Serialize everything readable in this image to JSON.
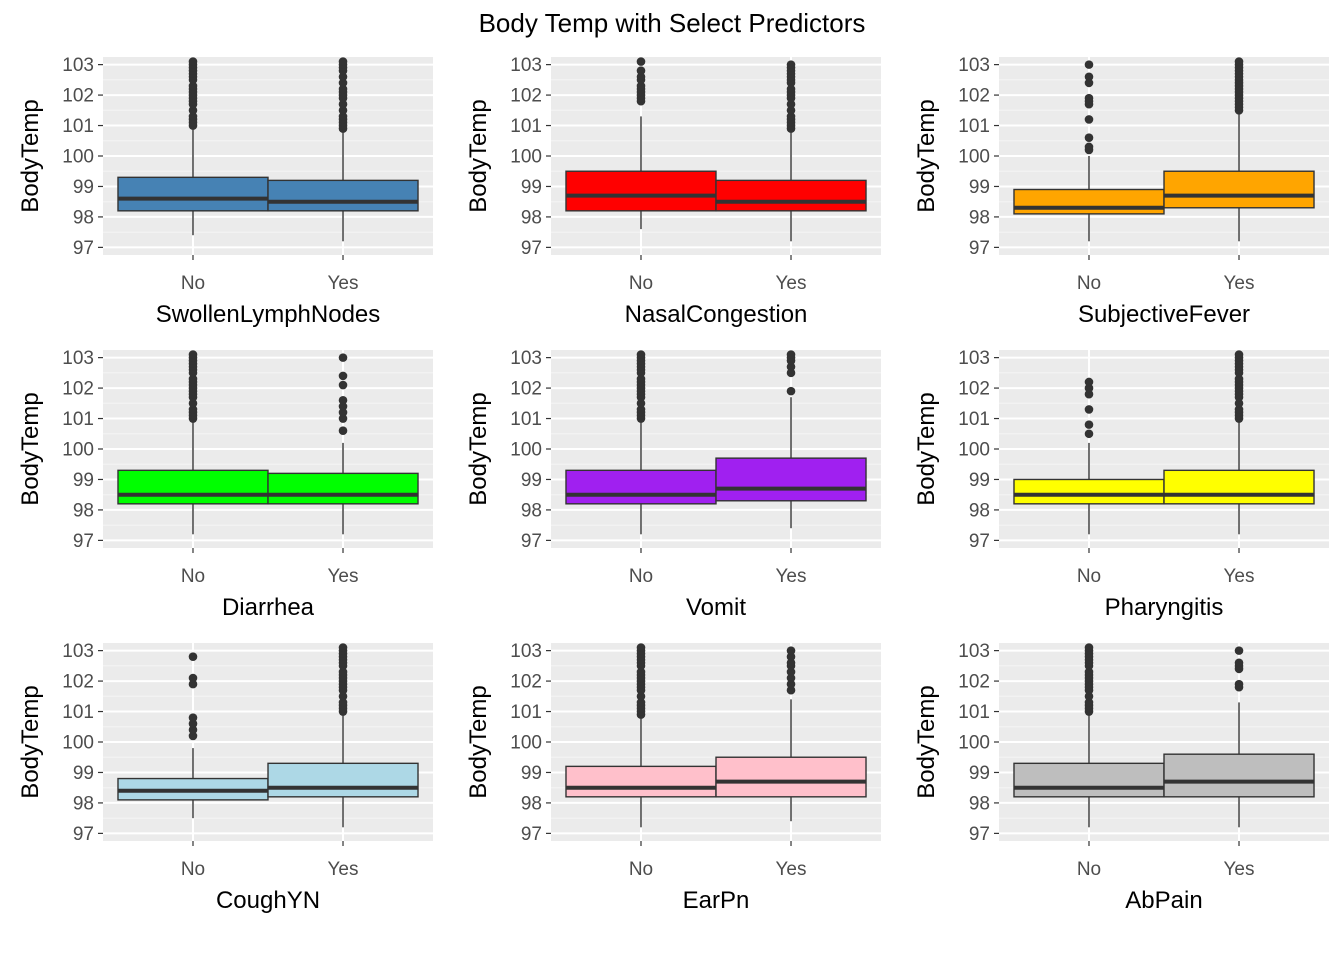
{
  "chart_data": {
    "type": "box",
    "title": "Body Temp with Select Predictors",
    "ylabel": "BodyTemp",
    "ylim": [
      96.75,
      103.25
    ],
    "yticks": [
      97,
      98,
      99,
      100,
      101,
      102,
      103
    ],
    "categories": [
      "No",
      "Yes"
    ],
    "grid": true,
    "panels": [
      {
        "xlabel": "SwollenLymphNodes",
        "fill": "#4682b4",
        "boxes": [
          {
            "category": "No",
            "min": 97.4,
            "q1": 98.2,
            "median": 98.6,
            "q3": 99.3,
            "max": 100.9,
            "outliers": [
              101.0,
              101.1,
              101.2,
              101.3,
              101.5,
              101.7,
              101.8,
              101.9,
              102.0,
              102.1,
              102.2,
              102.3,
              102.5,
              102.6,
              102.7,
              102.8,
              102.9,
              103.0,
              103.1
            ]
          },
          {
            "category": "Yes",
            "min": 97.2,
            "q1": 98.2,
            "median": 98.5,
            "q3": 99.2,
            "max": 100.8,
            "outliers": [
              100.9,
              101.0,
              101.1,
              101.2,
              101.3,
              101.5,
              101.7,
              101.9,
              102.0,
              102.1,
              102.2,
              102.4,
              102.6,
              102.8,
              102.9,
              103.0,
              103.1
            ]
          }
        ]
      },
      {
        "xlabel": "NasalCongestion",
        "fill": "#ff0000",
        "boxes": [
          {
            "category": "No",
            "min": 97.6,
            "q1": 98.2,
            "median": 98.7,
            "q3": 99.5,
            "max": 101.3,
            "outliers": [
              101.8,
              101.9,
              102.0,
              102.1,
              102.2,
              102.3,
              102.5,
              102.6,
              102.8,
              103.1
            ]
          },
          {
            "category": "Yes",
            "min": 97.2,
            "q1": 98.2,
            "median": 98.5,
            "q3": 99.2,
            "max": 100.8,
            "outliers": [
              100.9,
              101.0,
              101.1,
              101.2,
              101.3,
              101.5,
              101.7,
              101.9,
              102.0,
              102.1,
              102.2,
              102.4,
              102.5,
              102.6,
              102.7,
              102.8,
              102.9,
              103.0
            ]
          }
        ]
      },
      {
        "xlabel": "SubjectiveFever",
        "fill": "#ffa500",
        "boxes": [
          {
            "category": "No",
            "min": 97.2,
            "q1": 98.1,
            "median": 98.3,
            "q3": 98.9,
            "max": 100.0,
            "outliers": [
              100.2,
              100.3,
              100.6,
              101.2,
              101.7,
              101.8,
              101.9,
              102.4,
              102.6,
              103.0
            ]
          },
          {
            "category": "Yes",
            "min": 97.2,
            "q1": 98.3,
            "median": 98.7,
            "q3": 99.5,
            "max": 101.4,
            "outliers": [
              101.5,
              101.6,
              101.7,
              101.8,
              101.9,
              102.0,
              102.1,
              102.2,
              102.3,
              102.4,
              102.5,
              102.6,
              102.7,
              102.8,
              102.9,
              103.0,
              103.1
            ]
          }
        ]
      },
      {
        "xlabel": "Diarrhea",
        "fill": "#00ff00",
        "boxes": [
          {
            "category": "No",
            "min": 97.2,
            "q1": 98.2,
            "median": 98.5,
            "q3": 99.3,
            "max": 100.9,
            "outliers": [
              101.0,
              101.1,
              101.2,
              101.3,
              101.5,
              101.7,
              101.8,
              101.9,
              102.0,
              102.1,
              102.2,
              102.3,
              102.5,
              102.6,
              102.7,
              102.8,
              102.9,
              103.0,
              103.1
            ]
          },
          {
            "category": "Yes",
            "min": 97.2,
            "q1": 98.2,
            "median": 98.5,
            "q3": 99.2,
            "max": 100.2,
            "outliers": [
              100.6,
              101.0,
              101.2,
              101.4,
              101.6,
              102.1,
              102.4,
              103.0
            ]
          }
        ]
      },
      {
        "xlabel": "Vomit",
        "fill": "#a020f0",
        "boxes": [
          {
            "category": "No",
            "min": 97.2,
            "q1": 98.2,
            "median": 98.5,
            "q3": 99.3,
            "max": 100.9,
            "outliers": [
              101.0,
              101.1,
              101.2,
              101.3,
              101.5,
              101.7,
              101.8,
              101.9,
              102.0,
              102.1,
              102.2,
              102.3,
              102.5,
              102.6,
              102.7,
              102.8,
              102.9,
              103.0,
              103.1
            ]
          },
          {
            "category": "Yes",
            "min": 97.4,
            "q1": 98.3,
            "median": 98.7,
            "q3": 99.7,
            "max": 101.7,
            "outliers": [
              101.9,
              102.5,
              102.7,
              102.9,
              103.0,
              103.1
            ]
          }
        ]
      },
      {
        "xlabel": "Pharyngitis",
        "fill": "#ffff00",
        "boxes": [
          {
            "category": "No",
            "min": 97.2,
            "q1": 98.2,
            "median": 98.5,
            "q3": 99.0,
            "max": 100.2,
            "outliers": [
              100.5,
              100.8,
              101.3,
              101.8,
              102.0,
              102.2
            ]
          },
          {
            "category": "Yes",
            "min": 97.2,
            "q1": 98.2,
            "median": 98.5,
            "q3": 99.3,
            "max": 100.9,
            "outliers": [
              101.0,
              101.1,
              101.2,
              101.3,
              101.5,
              101.7,
              101.8,
              101.9,
              102.0,
              102.1,
              102.2,
              102.3,
              102.5,
              102.6,
              102.7,
              102.8,
              102.9,
              103.0,
              103.1
            ]
          }
        ]
      },
      {
        "xlabel": "CoughYN",
        "fill": "#add8e6",
        "boxes": [
          {
            "category": "No",
            "min": 97.5,
            "q1": 98.1,
            "median": 98.4,
            "q3": 98.8,
            "max": 99.8,
            "outliers": [
              100.2,
              100.4,
              100.6,
              100.8,
              101.9,
              102.1,
              102.8
            ]
          },
          {
            "category": "Yes",
            "min": 97.2,
            "q1": 98.2,
            "median": 98.5,
            "q3": 99.3,
            "max": 100.9,
            "outliers": [
              101.0,
              101.1,
              101.2,
              101.3,
              101.5,
              101.7,
              101.8,
              101.9,
              102.0,
              102.1,
              102.2,
              102.3,
              102.5,
              102.6,
              102.7,
              102.8,
              102.9,
              103.0,
              103.1
            ]
          }
        ]
      },
      {
        "xlabel": "EarPn",
        "fill": "#ffc0cb",
        "boxes": [
          {
            "category": "No",
            "min": 97.2,
            "q1": 98.2,
            "median": 98.5,
            "q3": 99.2,
            "max": 100.8,
            "outliers": [
              100.9,
              101.0,
              101.1,
              101.2,
              101.3,
              101.5,
              101.7,
              101.8,
              101.9,
              102.0,
              102.1,
              102.2,
              102.3,
              102.5,
              102.6,
              102.7,
              102.8,
              102.9,
              103.0,
              103.1
            ]
          },
          {
            "category": "Yes",
            "min": 97.4,
            "q1": 98.2,
            "median": 98.7,
            "q3": 99.5,
            "max": 101.4,
            "outliers": [
              101.7,
              101.9,
              102.1,
              102.3,
              102.5,
              102.6,
              102.8,
              103.0
            ]
          }
        ]
      },
      {
        "xlabel": "AbPain",
        "fill": "#bebebe",
        "boxes": [
          {
            "category": "No",
            "min": 97.2,
            "q1": 98.2,
            "median": 98.5,
            "q3": 99.3,
            "max": 100.9,
            "outliers": [
              101.0,
              101.1,
              101.2,
              101.3,
              101.5,
              101.7,
              101.8,
              101.9,
              102.0,
              102.1,
              102.2,
              102.3,
              102.5,
              102.6,
              102.7,
              102.8,
              102.9,
              103.0,
              103.1
            ]
          },
          {
            "category": "Yes",
            "min": 97.2,
            "q1": 98.2,
            "median": 98.7,
            "q3": 99.6,
            "max": 101.3,
            "outliers": [
              101.8,
              101.9,
              102.4,
              102.5,
              102.6,
              103.0
            ]
          }
        ]
      }
    ]
  }
}
